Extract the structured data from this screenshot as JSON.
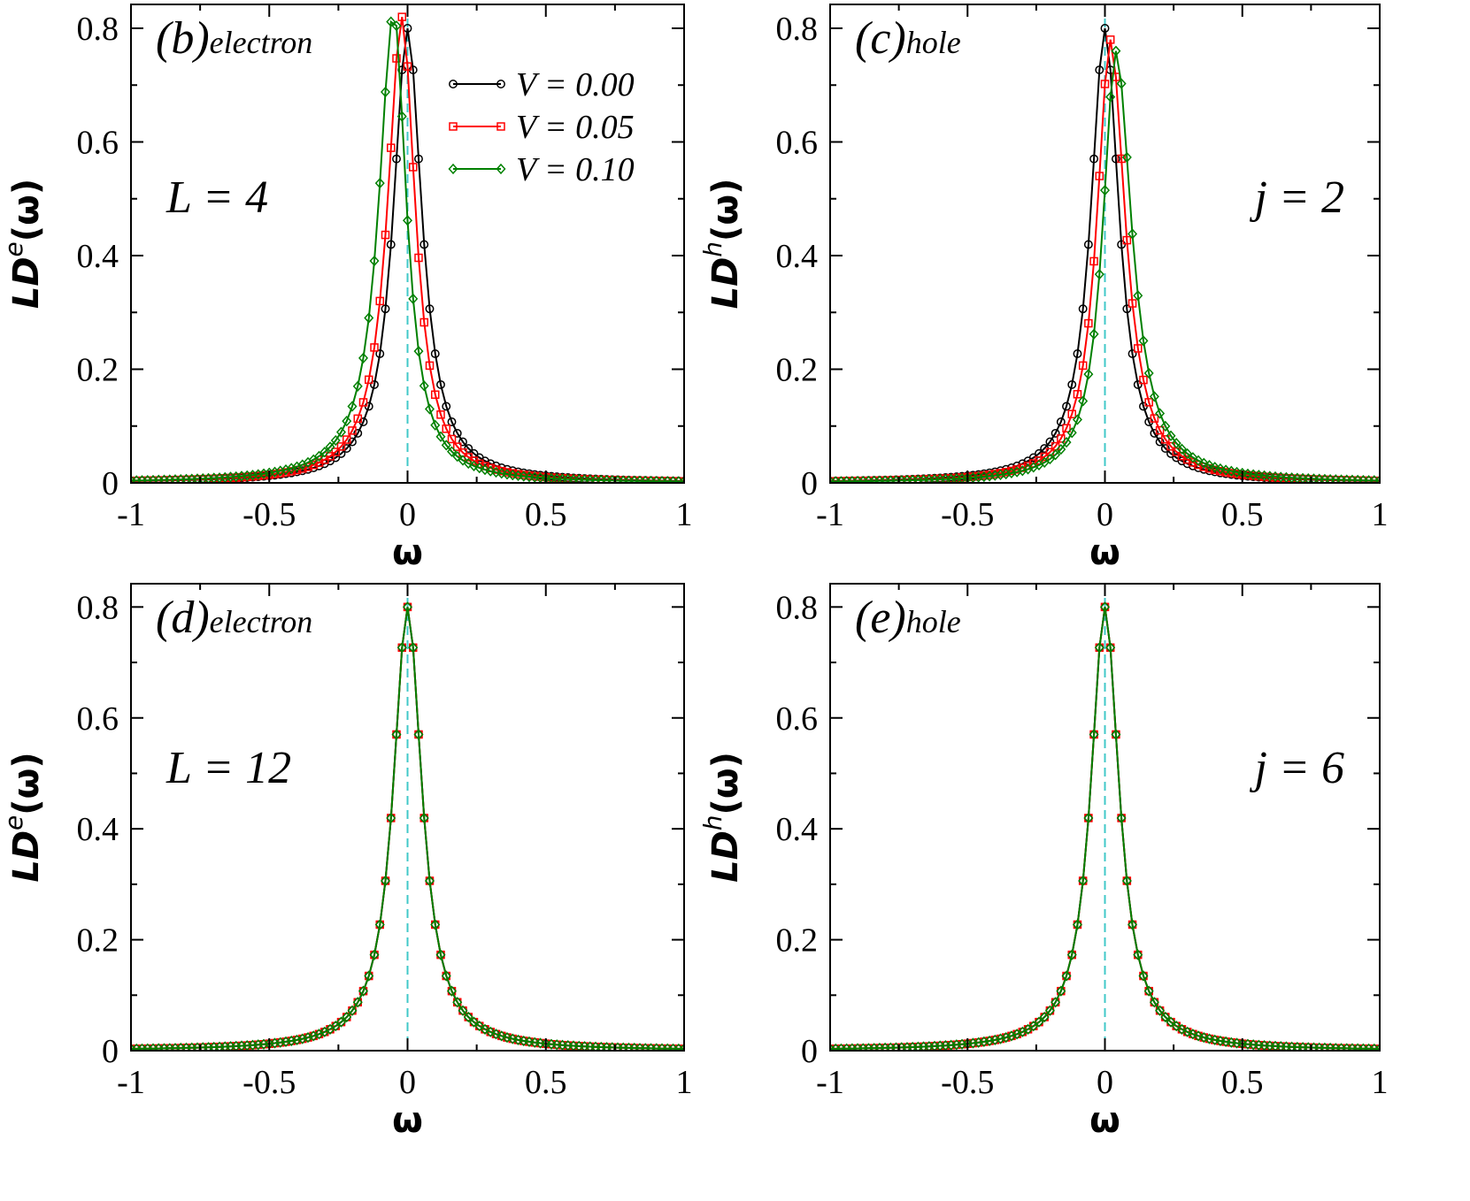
{
  "chart_data": [
    {
      "type": "line",
      "panel": "(b)",
      "panel_sub": "electron",
      "note": "L = 4",
      "xlabel": "ω",
      "ylabel_main": "LD",
      "ylabel_sup": "e",
      "ylabel_tail": "(ω)",
      "xlim": [
        -1,
        1
      ],
      "ylim": [
        0,
        0.8
      ],
      "x_ticks": [
        "-1",
        "-0.5",
        "0",
        "0.5",
        "1"
      ],
      "y_ticks": [
        "0",
        "0.2",
        "0.4",
        "0.6",
        "0.8"
      ],
      "legend_position": "top-right",
      "series": [
        {
          "name": "V = 0.00",
          "color": "#000000",
          "marker": "circle",
          "center": 0.0,
          "peak": 0.8,
          "gamma_left": 0.063,
          "gamma_right": 0.063
        },
        {
          "name": "V = 0.05",
          "color": "#ff0000",
          "marker": "square",
          "center": -0.02,
          "peak": 0.82,
          "gamma_left": 0.064,
          "gamma_right": 0.058
        },
        {
          "name": "V = 0.10",
          "color": "#008000",
          "marker": "diamond",
          "center": -0.05,
          "peak": 0.83,
          "gamma_left": 0.066,
          "gamma_right": 0.056
        }
      ]
    },
    {
      "type": "line",
      "panel": "(c)",
      "panel_sub": "hole",
      "note": "j = 2",
      "xlabel": "ω",
      "ylabel_main": "LD",
      "ylabel_sup": "h",
      "ylabel_tail": "(ω)",
      "xlim": [
        -1,
        1
      ],
      "ylim": [
        0,
        0.8
      ],
      "x_ticks": [
        "-1",
        "-0.5",
        "0",
        "0.5",
        "1"
      ],
      "y_ticks": [
        "0",
        "0.2",
        "0.4",
        "0.6",
        "0.8"
      ],
      "series": [
        {
          "name": "V = 0.00",
          "color": "#000000",
          "marker": "circle",
          "center": 0.0,
          "peak": 0.8,
          "gamma_left": 0.063,
          "gamma_right": 0.063
        },
        {
          "name": "V = 0.05",
          "color": "#ff0000",
          "marker": "square",
          "center": 0.02,
          "peak": 0.78,
          "gamma_left": 0.06,
          "gamma_right": 0.066
        },
        {
          "name": "V = 0.10",
          "color": "#008000",
          "marker": "diamond",
          "center": 0.04,
          "peak": 0.76,
          "gamma_left": 0.058,
          "gamma_right": 0.07
        }
      ]
    },
    {
      "type": "line",
      "panel": "(d)",
      "panel_sub": "electron",
      "note": "L = 12",
      "xlabel": "ω",
      "ylabel_main": "LD",
      "ylabel_sup": "e",
      "ylabel_tail": "(ω)",
      "xlim": [
        -1,
        1
      ],
      "ylim": [
        0,
        0.8
      ],
      "x_ticks": [
        "-1",
        "-0.5",
        "0",
        "0.5",
        "1"
      ],
      "y_ticks": [
        "0",
        "0.2",
        "0.4",
        "0.6",
        "0.8"
      ],
      "series": [
        {
          "name": "V = 0.00",
          "color": "#000000",
          "marker": "circle",
          "center": 0.0,
          "peak": 0.8,
          "gamma_left": 0.063,
          "gamma_right": 0.063
        },
        {
          "name": "V = 0.05",
          "color": "#ff0000",
          "marker": "square",
          "center": 0.0,
          "peak": 0.8,
          "gamma_left": 0.063,
          "gamma_right": 0.063
        },
        {
          "name": "V = 0.10",
          "color": "#008000",
          "marker": "diamond",
          "center": 0.0,
          "peak": 0.8,
          "gamma_left": 0.063,
          "gamma_right": 0.063
        }
      ]
    },
    {
      "type": "line",
      "panel": "(e)",
      "panel_sub": "hole",
      "note": "j = 6",
      "xlabel": "ω",
      "ylabel_main": "LD",
      "ylabel_sup": "h",
      "ylabel_tail": "(ω)",
      "xlim": [
        -1,
        1
      ],
      "ylim": [
        0,
        0.8
      ],
      "x_ticks": [
        "-1",
        "-0.5",
        "0",
        "0.5",
        "1"
      ],
      "y_ticks": [
        "0",
        "0.2",
        "0.4",
        "0.6",
        "0.8"
      ],
      "series": [
        {
          "name": "V = 0.00",
          "color": "#000000",
          "marker": "circle",
          "center": 0.0,
          "peak": 0.8,
          "gamma_left": 0.063,
          "gamma_right": 0.063
        },
        {
          "name": "V = 0.05",
          "color": "#ff0000",
          "marker": "square",
          "center": 0.0,
          "peak": 0.8,
          "gamma_left": 0.063,
          "gamma_right": 0.063
        },
        {
          "name": "V = 0.10",
          "color": "#008000",
          "marker": "diamond",
          "center": 0.0,
          "peak": 0.8,
          "gamma_left": 0.063,
          "gamma_right": 0.063
        }
      ]
    }
  ],
  "fermi_line_color": "#40c8c8"
}
